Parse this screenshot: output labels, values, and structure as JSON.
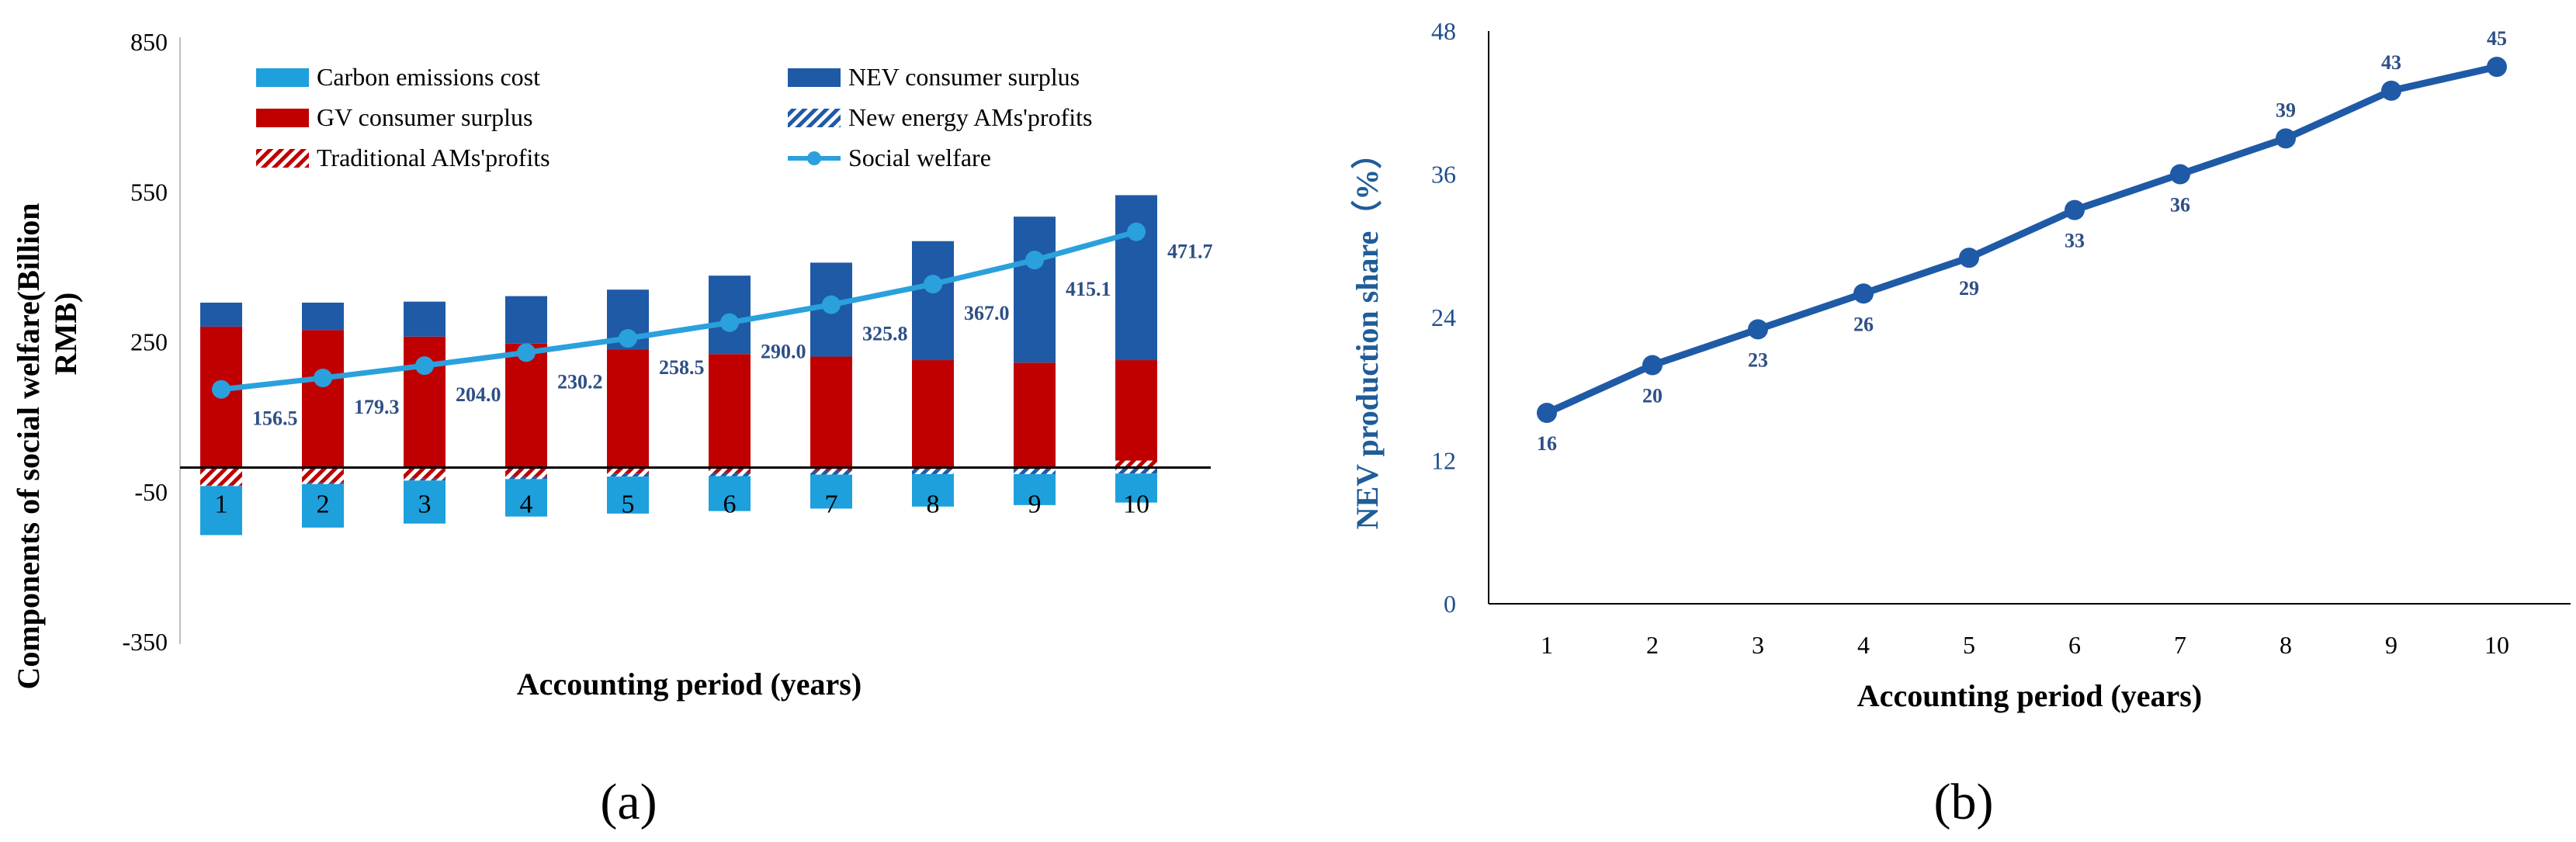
{
  "chart_data": [
    {
      "id": "a",
      "type": "bar",
      "panel_label": "(a)",
      "xlabel": "Accounting period (years)",
      "ylabel_line1": "Components of social welfare(Billion",
      "ylabel_line2": "RMB)",
      "ylim": [
        -350,
        850
      ],
      "yticks": [
        -350,
        -50,
        250,
        550,
        850
      ],
      "categories": [
        "1",
        "2",
        "3",
        "4",
        "5",
        "6",
        "7",
        "8",
        "9",
        "10"
      ],
      "legend": {
        "carbon": "Carbon emissions cost",
        "nev": "NEV consumer surplus",
        "gv": "GV consumer surplus",
        "new_energy": "New energy AMs'profits",
        "traditional": "Traditional AMs'profits",
        "welfare": "Social welfare"
      },
      "series": [
        {
          "name": "GV consumer surplus",
          "color": "#c00000",
          "values": [
            282,
            275,
            262,
            248,
            236,
            227,
            222,
            215,
            210,
            215
          ]
        },
        {
          "name": "NEV consumer surplus",
          "color": "#1f5aa6",
          "values": [
            48,
            55,
            70,
            95,
            120,
            157,
            188,
            238,
            292,
            330
          ]
        },
        {
          "name": "New energy AMs'profits",
          "color": "#1f5aa6",
          "values": [
            2,
            3,
            4,
            5,
            6,
            7,
            8,
            9,
            10,
            12
          ]
        },
        {
          "name": "Traditional AMs'profits",
          "color": "#c00000",
          "values": [
            -35,
            -30,
            -22,
            -18,
            -12,
            -10,
            -6,
            -4,
            -3,
            14
          ]
        },
        {
          "name": "Carbon emissions cost",
          "color": "#1ea0dc",
          "values": [
            -135,
            -120,
            -112,
            -98,
            -92,
            -87,
            -82,
            -78,
            -75,
            -70
          ]
        },
        {
          "name": "Social welfare",
          "color": "#2aa1dc",
          "values": [
            156.5,
            179.3,
            204.0,
            230.2,
            258.5,
            290.0,
            325.8,
            367.0,
            415.1,
            471.7
          ]
        }
      ],
      "welfare_labels": [
        "156.5",
        "179.3",
        "204.0",
        "230.2",
        "258.5",
        "290.0",
        "325.8",
        "367.0",
        "415.1",
        "471.7"
      ]
    },
    {
      "id": "b",
      "type": "line",
      "panel_label": "(b)",
      "xlabel": "Accounting period (years)",
      "ylabel": "NEV production share（%）",
      "ylim": [
        0,
        48
      ],
      "yticks": [
        0,
        12,
        24,
        36,
        48
      ],
      "categories": [
        "1",
        "2",
        "3",
        "4",
        "5",
        "6",
        "7",
        "8",
        "9",
        "10"
      ],
      "series": [
        {
          "name": "NEV production share",
          "color": "#1f5aa6",
          "values": [
            16,
            20,
            23,
            26,
            29,
            33,
            36,
            39,
            43,
            45
          ]
        }
      ],
      "value_labels": [
        "16",
        "20",
        "23",
        "26",
        "29",
        "33",
        "36",
        "39",
        "43",
        "45"
      ]
    }
  ]
}
